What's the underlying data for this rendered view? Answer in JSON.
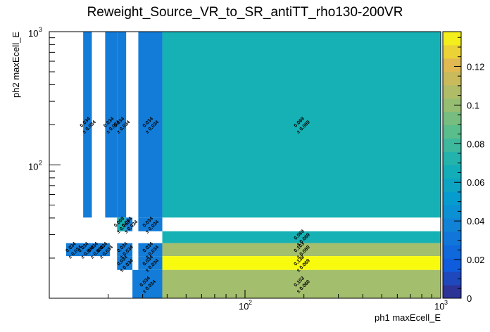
{
  "chart_data": {
    "type": "heatmap",
    "title": "Reweight_Source_VR_to_SR_antiTT_rho130-200VR",
    "xlabel": "ph1 maxEcell_E",
    "ylabel": "ph2 maxEcell_E",
    "xscale": "log",
    "yscale": "log",
    "xlim": [
      10,
      1000
    ],
    "ylim": [
      10,
      1000
    ],
    "x_ticks": [
      {
        "value": 100,
        "base": "10",
        "exp": "2"
      },
      {
        "value": 1000,
        "base": "10",
        "exp": "3"
      }
    ],
    "y_ticks": [
      {
        "value": 100,
        "base": "10",
        "exp": "2"
      },
      {
        "value": 1000,
        "base": "10",
        "exp": "3"
      }
    ],
    "colorbar": {
      "min": 0,
      "max": 0.138,
      "ticks": [
        0,
        0.02,
        0.04,
        0.06,
        0.08,
        0.1,
        0.12
      ],
      "tick_labels": [
        "0",
        "0.02",
        "0.04",
        "0.06",
        "0.08",
        "0.1",
        "0.12"
      ]
    },
    "cells": [
      {
        "x0": 14.9,
        "x1": 16.5,
        "y0": 40.3,
        "y1": 1000,
        "value": 0.034,
        "label": "0.034",
        "error": "± 0.034"
      },
      {
        "x0": 19.3,
        "x1": 22.2,
        "y0": 40.3,
        "y1": 1000,
        "value": 0.034,
        "label": "0.034",
        "error": "± 0.034"
      },
      {
        "x0": 22.2,
        "x1": 24.7,
        "y0": 40.3,
        "y1": 1000,
        "value": 0.034,
        "label": "0.034",
        "error": "± 0.034"
      },
      {
        "x0": 28.5,
        "x1": 37.8,
        "y0": 40.3,
        "y1": 1000,
        "value": 0.034,
        "label": "0.034",
        "error": "± 0.034"
      },
      {
        "x0": 37.8,
        "x1": 1000,
        "y0": 40.3,
        "y1": 1000,
        "value": 0.069,
        "label": "0.069",
        "error": "± 0.069"
      },
      {
        "x0": 22.2,
        "x1": 24.7,
        "y0": 31.8,
        "y1": 40.3,
        "value": 0.069,
        "label": "0.069",
        "error": "± 0.069"
      },
      {
        "x0": 24.7,
        "x1": 26.6,
        "y0": 31.8,
        "y1": 40.3,
        "value": 0.034,
        "label": "0.034",
        "error": "± 0.034"
      },
      {
        "x0": 28.5,
        "x1": 37.8,
        "y0": 31.8,
        "y1": 40.3,
        "value": 0.034,
        "label": "0.034",
        "error": "± 0.034"
      },
      {
        "x0": 37.8,
        "x1": 1000,
        "y0": 25.9,
        "y1": 31.8,
        "value": 0.069,
        "label": "0.069",
        "error": "± 0.069"
      },
      {
        "x0": 12.2,
        "x1": 14.4,
        "y0": 20.7,
        "y1": 25.9,
        "value": 0.034,
        "label": "0.034",
        "error": "± 0.034"
      },
      {
        "x0": 14.4,
        "x1": 16.4,
        "y0": 20.7,
        "y1": 25.9,
        "value": 0.034,
        "label": "0.034",
        "error": "± 0.034"
      },
      {
        "x0": 16.4,
        "x1": 18.0,
        "y0": 20.7,
        "y1": 25.9,
        "value": 0.034,
        "label": "0.034",
        "error": "± 0.034"
      },
      {
        "x0": 18.0,
        "x1": 20.4,
        "y0": 20.7,
        "y1": 25.9,
        "value": 0.034,
        "label": "0.034",
        "error": "± 0.034"
      },
      {
        "x0": 22.2,
        "x1": 26.6,
        "y0": 20.7,
        "y1": 25.9,
        "value": 0.034,
        "label": "0.034",
        "error": "± 0.034"
      },
      {
        "x0": 28.5,
        "x1": 37.8,
        "y0": 20.7,
        "y1": 25.9,
        "value": 0.034,
        "label": "0.034",
        "error": "± 0.034"
      },
      {
        "x0": 37.8,
        "x1": 1000,
        "y0": 20.7,
        "y1": 25.9,
        "value": 0.103,
        "label": "0.103",
        "error": "± 0.060"
      },
      {
        "x0": 22.2,
        "x1": 26.6,
        "y0": 16.3,
        "y1": 20.7,
        "value": 0.034,
        "label": "0.034",
        "error": "± 0.034"
      },
      {
        "x0": 28.5,
        "x1": 37.8,
        "y0": 16.3,
        "y1": 20.7,
        "value": 0.034,
        "label": "0.034",
        "error": "± 0.034"
      },
      {
        "x0": 37.8,
        "x1": 1000,
        "y0": 16.3,
        "y1": 20.7,
        "value": 0.138,
        "label": "0.138",
        "error": "± 0.069"
      },
      {
        "x0": 26.6,
        "x1": 37.8,
        "y0": 10,
        "y1": 16.3,
        "value": 0.034,
        "label": "0.034",
        "error": "± 0.034"
      },
      {
        "x0": 37.8,
        "x1": 1000,
        "y0": 10,
        "y1": 16.3,
        "value": 0.103,
        "label": "0.103",
        "error": "± 0.060"
      }
    ]
  }
}
